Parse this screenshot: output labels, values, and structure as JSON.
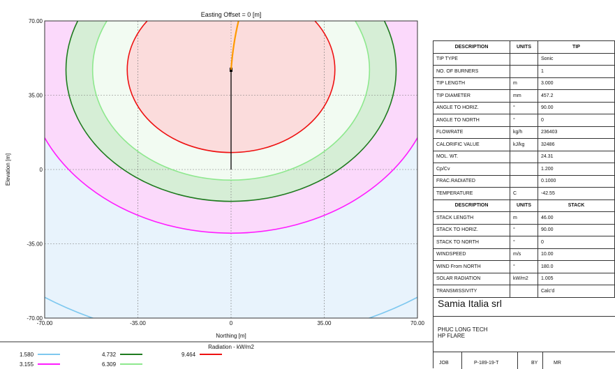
{
  "chart_data": {
    "type": "contour",
    "title": "Easting Offset = 0 [m]",
    "xlabel": "Northing [m]",
    "ylabel": "Elevation [m]",
    "xlim": [
      -70,
      70
    ],
    "ylim": [
      -70,
      70
    ],
    "x_ticks": [
      "-70.00",
      "-35.00",
      "0",
      "35.00",
      "70.00"
    ],
    "y_ticks": [
      "70.00",
      "35.00",
      "0",
      "-35.00",
      "-70.00"
    ],
    "grid": true,
    "legend_title": "Radiation - kW/m2",
    "flame_center": [
      0,
      47
    ],
    "stack_top": 47,
    "series": [
      {
        "name": "1.580",
        "radius": 128,
        "color": "#7ec8ef"
      },
      {
        "name": "3.155",
        "radius": 77,
        "color": "#ff1cff"
      },
      {
        "name": "4.732",
        "radius": 62,
        "color": "#1e7a1e"
      },
      {
        "name": "6.309",
        "radius": 52,
        "color": "#8ee88e"
      },
      {
        "name": "9.464",
        "radius": 39,
        "color": "#ee1111"
      }
    ],
    "fills": {
      "outer": "#e8f3fc",
      "pink": "#fbd9fb",
      "green_band": "#d6eed6",
      "light_band": "#f2fbf2",
      "red_zone": "#fbdcdc",
      "flame": "#ff9a00",
      "stack": "#000000"
    }
  },
  "table": {
    "rows": [
      {
        "c1": "DESCRIPTION",
        "c2": "UNITS",
        "c3": "TIP",
        "hdr": true
      },
      {
        "c1": "TIP TYPE",
        "c2": "",
        "c3": "Sonic"
      },
      {
        "c1": "NO. OF BURNERS",
        "c2": "",
        "c3": "1"
      },
      {
        "c1": "TIP LENGTH",
        "c2": "m",
        "c3": "3.000"
      },
      {
        "c1": "TIP DIAMETER",
        "c2": "mm",
        "c3": "457.2"
      },
      {
        "c1": "ANGLE TO HORIZ.",
        "c2": "°",
        "c3": "90.00"
      },
      {
        "c1": "ANGLE TO NORTH",
        "c2": "°",
        "c3": "0"
      },
      {
        "c1": "FLOWRATE",
        "c2": "kg/h",
        "c3": "236403"
      },
      {
        "c1": "CALORIFIC VALUE",
        "c2": "kJ/kg",
        "c3": "32486"
      },
      {
        "c1": "MOL. WT.",
        "c2": "",
        "c3": "24.31"
      },
      {
        "c1": "Cp/Cv",
        "c2": "",
        "c3": "1.200"
      },
      {
        "c1": "FRAC.RADIATED",
        "c2": "",
        "c3": "0.1000"
      },
      {
        "c1": "TEMPERATURE",
        "c2": "C",
        "c3": "-42.55"
      },
      {
        "c1": "DESCRIPTION",
        "c2": "UNITS",
        "c3": "STACK",
        "hdr": true
      },
      {
        "c1": "STACK LENGTH",
        "c2": "m",
        "c3": "46.00"
      },
      {
        "c1": "STACK TO HORIZ.",
        "c2": "°",
        "c3": "90.00"
      },
      {
        "c1": "STACK TO NORTH",
        "c2": "°",
        "c3": "0"
      },
      {
        "c1": "WINDSPEED",
        "c2": "m/s",
        "c3": "10.00"
      },
      {
        "c1": "WIND From NORTH",
        "c2": "°",
        "c3": "180.0"
      },
      {
        "c1": "SOLAR RADIATION",
        "c2": "kW/m2",
        "c3": "1.005"
      },
      {
        "c1": "TRANSMISSIVITY",
        "c2": "",
        "c3": "Calc'd"
      }
    ]
  },
  "title_block": {
    "company": "Samia Italia srl",
    "project_line1": "PHUC LONG TECH",
    "project_line2": "HP FLARE",
    "job_label": "JOB",
    "job_value": "P-189-19-T",
    "by_label": "BY",
    "by_value": "MR"
  }
}
